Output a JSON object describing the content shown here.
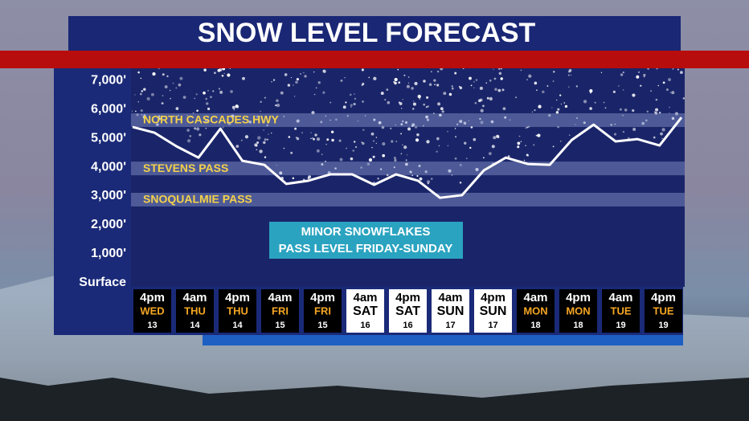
{
  "chart_data": {
    "type": "line",
    "title": "SNOW LEVEL FORECAST",
    "ylim": [
      -140,
      7420
    ],
    "yticks": [
      {
        "value": 0,
        "label": "Surface"
      },
      {
        "value": 1000,
        "label": "1,000'"
      },
      {
        "value": 2000,
        "label": "2,000'"
      },
      {
        "value": 3000,
        "label": "3,000'"
      },
      {
        "value": 4000,
        "label": "4,000'"
      },
      {
        "value": 5000,
        "label": "5,000'"
      },
      {
        "value": 6000,
        "label": "6,000'"
      },
      {
        "value": 7000,
        "label": "7,000'"
      }
    ],
    "series": [
      {
        "color": "#ffffff",
        "values": [
          5390,
          5190,
          4720,
          4330,
          5330,
          4220,
          4080,
          3420,
          3530,
          3750,
          3750,
          3390,
          3750,
          3530,
          2940,
          3030,
          3890,
          4330,
          4110,
          4080,
          4940,
          5470,
          4890,
          4970,
          4750,
          5720
        ]
      }
    ],
    "passes": [
      {
        "name": "NORTH CASCADES HWY",
        "value": 5640
      },
      {
        "name": "STEVENS PASS",
        "value": 3970
      },
      {
        "name": "SNOQUALMIE PASS",
        "value": 2890
      }
    ],
    "annotation": [
      "MINOR SNOWFLAKES",
      "PASS LEVEL FRIDAY-SUNDAY"
    ],
    "time_labels": [
      {
        "time": "4pm",
        "day": "WED",
        "date": "13",
        "box_color": "#000000"
      },
      {
        "time": "4am",
        "day": "THU",
        "date": "14",
        "box_color": "#000000"
      },
      {
        "time": "4pm",
        "day": "THU",
        "date": "14",
        "box_color": "#000000"
      },
      {
        "time": "4am",
        "day": "FRI",
        "date": "15",
        "box_color": "#000000"
      },
      {
        "time": "4pm",
        "day": "FRI",
        "date": "15",
        "box_color": "#000000"
      },
      {
        "time": "4am",
        "day": "SAT",
        "date": "16",
        "box_color": "#ffffff"
      },
      {
        "time": "4pm",
        "day": "SAT",
        "date": "16",
        "box_color": "#ffffff"
      },
      {
        "time": "4am",
        "day": "SUN",
        "date": "17",
        "box_color": "#ffffff"
      },
      {
        "time": "4pm",
        "day": "SUN",
        "date": "17",
        "box_color": "#ffffff"
      },
      {
        "time": "4am",
        "day": "MON",
        "date": "18",
        "box_color": "#000000"
      },
      {
        "time": "4pm",
        "day": "MON",
        "date": "18",
        "box_color": "#000000"
      },
      {
        "time": "4am",
        "day": "TUE",
        "date": "19",
        "box_color": "#000000"
      },
      {
        "time": "4pm",
        "day": "TUE",
        "date": "19",
        "box_color": "#000000"
      }
    ]
  }
}
